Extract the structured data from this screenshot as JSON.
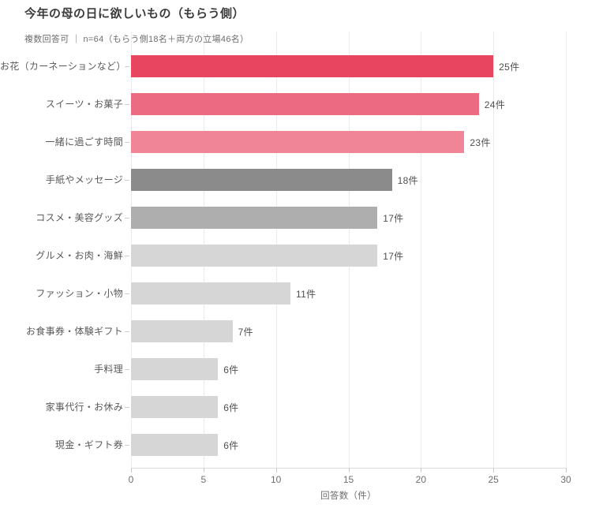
{
  "title": "今年の母の日に欲しいもの（もらう側）",
  "subtitle": "複数回答可 ｜ n=64（もらう側18名＋両方の立場46名）",
  "colors": {
    "accent_pink_strong": "#e84560",
    "accent_pink_medium": "#ed6b82",
    "accent_pink_light": "#f08598",
    "gray_dark": "#8b8b8b",
    "gray_medium": "#aeaeae",
    "gray_light": "#d6d6d6",
    "background": "#ffffff"
  },
  "chart_data": {
    "type": "bar",
    "orientation": "horizontal",
    "title": "今年の母の日に欲しいもの（もらう側）",
    "subtitle": "複数回答可 ｜ n=64（もらう側18名＋両方の立場46名）",
    "categories": [
      "お花（カーネーションなど）",
      "スイーツ・お菓子",
      "一緒に過ごす時間",
      "手紙やメッセージ",
      "コスメ・美容グッズ",
      "グルメ・お肉・海鮮",
      "ファッション・小物",
      "お食事券・体験ギフト",
      "手料理",
      "家事代行・お休み",
      "現金・ギフト券"
    ],
    "values": [
      25,
      24,
      23,
      18,
      17,
      17,
      11,
      7,
      6,
      6,
      6
    ],
    "value_labels": [
      "25件",
      "24件",
      "23件",
      "18件",
      "17件",
      "17件",
      "11件",
      "7件",
      "6件",
      "6件",
      "6件"
    ],
    "bar_colors": [
      "#e84560",
      "#ed6b82",
      "#f08598",
      "#8b8b8b",
      "#aeaeae",
      "#d6d6d6",
      "#d6d6d6",
      "#d6d6d6",
      "#d6d6d6",
      "#d6d6d6",
      "#d6d6d6"
    ],
    "xlabel": "回答数（件）",
    "ylabel": "",
    "xlim": [
      0,
      30
    ],
    "xticks": [
      0,
      5,
      10,
      15,
      20,
      25,
      30
    ],
    "xtick_labels": [
      "0",
      "5",
      "10",
      "15",
      "20",
      "25",
      "30"
    ],
    "grid": "vertical",
    "legend": "none"
  }
}
